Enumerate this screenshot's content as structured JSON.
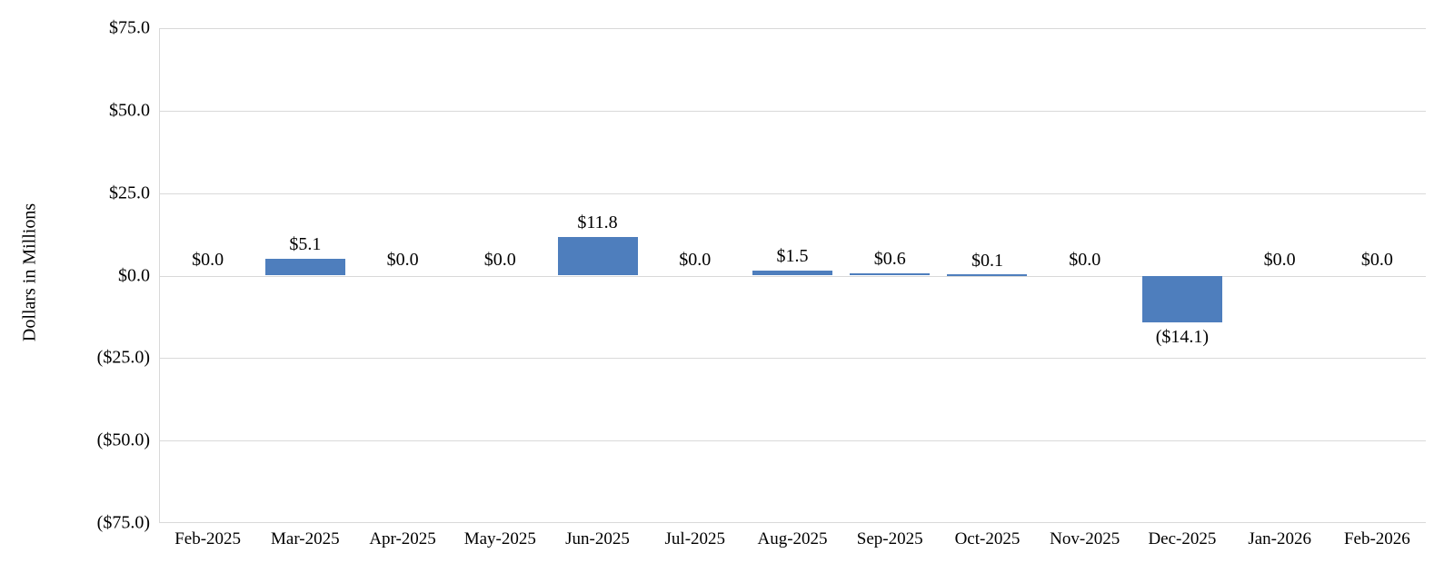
{
  "chart_data": {
    "type": "bar",
    "ylabel": "Dollars in Millions",
    "categories": [
      "Feb-2025",
      "Mar-2025",
      "Apr-2025",
      "May-2025",
      "Jun-2025",
      "Jul-2025",
      "Aug-2025",
      "Sep-2025",
      "Oct-2025",
      "Nov-2025",
      "Dec-2025",
      "Jan-2026",
      "Feb-2026"
    ],
    "values": [
      0.0,
      5.1,
      0.0,
      0.0,
      11.8,
      0.0,
      1.5,
      0.6,
      0.1,
      0.0,
      -14.1,
      0.0,
      0.0
    ],
    "data_labels": [
      "$0.0",
      "$5.1",
      "$0.0",
      "$0.0",
      "$11.8",
      "$0.0",
      "$1.5",
      "$0.6",
      "$0.1",
      "$0.0",
      "($14.1)",
      "$0.0",
      "$0.0"
    ],
    "ylim": [
      -75,
      75
    ],
    "yticks": [
      75,
      50,
      25,
      0,
      -25,
      -50,
      -75
    ],
    "ytick_labels": [
      "$75.0",
      "$50.0",
      "$25.0",
      "$0.0",
      "($25.0)",
      "($50.0)",
      "($75.0)"
    ],
    "grid": true,
    "legend": "none",
    "colors": {
      "bar": "#4E7EBD",
      "gridline": "#D9D9D9",
      "axis_line": "#D9D9D9",
      "text": "#000000",
      "background": "#FFFFFF"
    }
  }
}
